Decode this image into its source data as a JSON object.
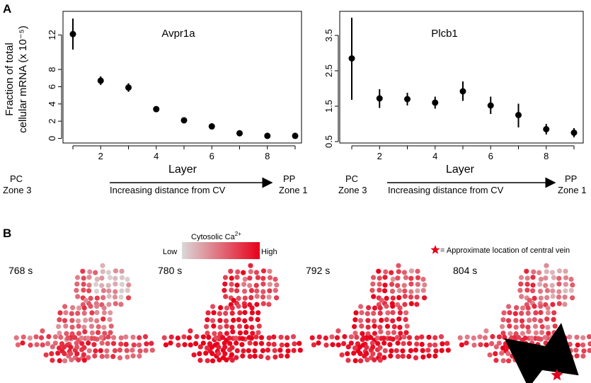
{
  "panel_a_label": "A",
  "panel_b_label": "B",
  "chart_data": [
    {
      "type": "scatter",
      "title": "Avpr1a",
      "ylabel": "Fraction of total\ncellular mRNA (x 10⁻⁵)",
      "xlabel": "Layer",
      "x": [
        1,
        2,
        3,
        4,
        5,
        6,
        7,
        8,
        9
      ],
      "values": [
        12.1,
        6.7,
        5.9,
        3.4,
        2.1,
        1.4,
        0.6,
        0.3,
        0.3
      ],
      "err_low": [
        10.3,
        6.2,
        5.4,
        3.3,
        2.0,
        1.3,
        0.5,
        0.2,
        0.2
      ],
      "err_high": [
        13.9,
        7.2,
        6.4,
        3.5,
        2.2,
        1.5,
        0.7,
        0.4,
        0.4
      ],
      "xticks": [
        "2",
        "4",
        "6",
        "8"
      ],
      "yticks": [
        "0",
        "2",
        "4",
        "6",
        "8",
        "12"
      ],
      "ylim": [
        -0.2,
        14
      ],
      "left_label": [
        "PC",
        "Zone 3"
      ],
      "right_label": [
        "PP",
        "Zone 1"
      ],
      "arrow_label": "Increasing distance from CV"
    },
    {
      "type": "scatter",
      "title": "Plcb1",
      "ylabel": "",
      "xlabel": "Layer",
      "x": [
        1,
        2,
        3,
        4,
        5,
        6,
        7,
        8,
        9
      ],
      "values": [
        2.85,
        1.72,
        1.7,
        1.6,
        1.92,
        1.52,
        1.25,
        0.85,
        0.75
      ],
      "err_low": [
        1.68,
        1.45,
        1.52,
        1.43,
        1.65,
        1.28,
        0.9,
        0.7,
        0.62
      ],
      "err_high": [
        4.0,
        1.98,
        1.88,
        1.77,
        2.2,
        1.77,
        1.57,
        1.0,
        0.88
      ],
      "xticks": [
        "2",
        "4",
        "6",
        "8"
      ],
      "yticks": [
        "0.5",
        "1.5",
        "2.5",
        "3.5"
      ],
      "ylim": [
        0.5,
        4.0
      ],
      "left_label": [
        "PC",
        "Zone 3"
      ],
      "right_label": [
        "PP",
        "Zone 1"
      ],
      "arrow_label": "Increasing distance from CV"
    }
  ],
  "legend": {
    "title": "Cytosolic Ca",
    "title_sup": "2+",
    "low": "Low",
    "high": "High",
    "low_color": "#d9d9d9",
    "high_color": "#e8001a"
  },
  "central_vein_note": "= Approximate  location of central vein",
  "timepoints": [
    "768 s",
    "780 s",
    "792 s",
    "804 s"
  ],
  "star_color": "#e8001a"
}
